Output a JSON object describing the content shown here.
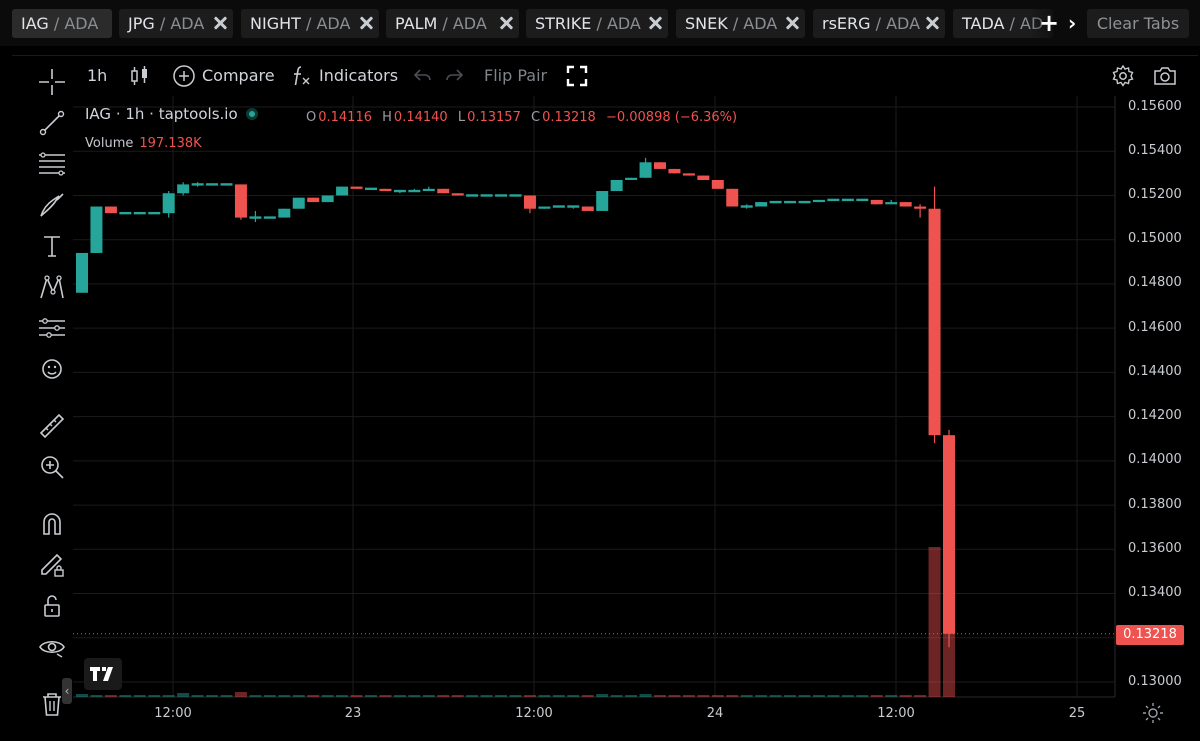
{
  "tabs": [
    {
      "symbol": "IAG",
      "quote": "ADA",
      "active": true
    },
    {
      "symbol": "JPG",
      "quote": "ADA"
    },
    {
      "symbol": "NIGHT",
      "quote": "ADA"
    },
    {
      "symbol": "PALM",
      "quote": "ADA"
    },
    {
      "symbol": "STRIKE",
      "quote": "ADA"
    },
    {
      "symbol": "SNEK",
      "quote": "ADA"
    },
    {
      "symbol": "rsERG",
      "quote": "ADA"
    },
    {
      "symbol": "TADA",
      "quote": "AD"
    }
  ],
  "tab_separator": " / ",
  "clear_tabs_label": "Clear Tabs",
  "toolbar": {
    "interval": "1h",
    "compare_label": "Compare",
    "indicators_label": "Indicators",
    "flip_pair_label": "Flip Pair"
  },
  "legend": {
    "title": "IAG · 1h · taptools.io",
    "open_key": "O",
    "open": "0.14116",
    "high_key": "H",
    "high": "0.14140",
    "low_key": "L",
    "low": "0.13157",
    "close_key": "C",
    "close": "0.13218",
    "change": "−0.00898 (−6.36%)",
    "volume_label": "Volume",
    "volume": "197.138K"
  },
  "price_axis": {
    "ticks": [
      "0.15600",
      "0.15400",
      "0.15200",
      "0.15000",
      "0.14800",
      "0.14600",
      "0.14400",
      "0.14200",
      "0.14000",
      "0.13800",
      "0.13600",
      "0.13400",
      "0.13200",
      "0.13000"
    ],
    "last_price": "0.13218"
  },
  "time_axis": {
    "ticks": [
      "12:00",
      "23",
      "12:00",
      "24",
      "12:00",
      "25"
    ]
  },
  "colors": {
    "up": "#26a69a",
    "down": "#ef5350",
    "background": "#000000",
    "grid": "#1b1b1b"
  },
  "icons": {
    "left_toolbar": [
      "crosshair-icon",
      "trend-line-icon",
      "fib-icon",
      "brush-icon",
      "text-icon",
      "pattern-icon",
      "prediction-icon",
      "emoji-icon",
      "ruler-icon",
      "zoom-in-icon",
      "magnet-icon",
      "lock-drawing-icon",
      "unlock-icon",
      "eye-icon",
      "trash-icon"
    ],
    "top_toolbar": [
      "candle-type-icon",
      "add-circle-icon",
      "fx-icon",
      "undo-icon",
      "redo-icon",
      "fullscreen-icon",
      "settings-icon",
      "camera-icon"
    ]
  },
  "chart_data": {
    "type": "candlestick",
    "interval": "1h",
    "ylim": [
      0.1295,
      0.1565
    ],
    "x_ticks": [
      "12:00",
      "23",
      "12:00",
      "24",
      "12:00",
      "25"
    ],
    "candles": [
      [
        0.1476,
        0.1494,
        0.1476,
        0.1494
      ],
      [
        0.1494,
        0.1515,
        0.1494,
        0.1515
      ],
      [
        0.1515,
        0.1515,
        0.1512,
        0.1512
      ],
      [
        0.1512,
        0.1512,
        0.1512,
        0.1512
      ],
      [
        0.1512,
        0.1512,
        0.1512,
        0.1512
      ],
      [
        0.1512,
        0.1512,
        0.1512,
        0.1512
      ],
      [
        0.1512,
        0.1522,
        0.151,
        0.1521
      ],
      [
        0.1521,
        0.1526,
        0.152,
        0.1525
      ],
      [
        0.1525,
        0.1526,
        0.1524,
        0.1525
      ],
      [
        0.1525,
        0.1525,
        0.1525,
        0.1525
      ],
      [
        0.1525,
        0.1525,
        0.1525,
        0.1525
      ],
      [
        0.1525,
        0.1525,
        0.1509,
        0.151
      ],
      [
        0.151,
        0.1513,
        0.1508,
        0.151
      ],
      [
        0.151,
        0.151,
        0.151,
        0.151
      ],
      [
        0.151,
        0.1514,
        0.151,
        0.1514
      ],
      [
        0.1514,
        0.1519,
        0.1514,
        0.1519
      ],
      [
        0.1519,
        0.1519,
        0.1517,
        0.1517
      ],
      [
        0.1517,
        0.152,
        0.1517,
        0.152
      ],
      [
        0.152,
        0.1524,
        0.152,
        0.1524
      ],
      [
        0.1524,
        0.1524,
        0.1523,
        0.1523
      ],
      [
        0.1523,
        0.1523,
        0.1523,
        0.1523
      ],
      [
        0.1523,
        0.1523,
        0.1522,
        0.1522
      ],
      [
        0.1522,
        0.1522,
        0.1521,
        0.1522
      ],
      [
        0.1522,
        0.1523,
        0.1522,
        0.1522
      ],
      [
        0.1522,
        0.1524,
        0.1522,
        0.1523
      ],
      [
        0.1523,
        0.1523,
        0.1521,
        0.1521
      ],
      [
        0.1521,
        0.1521,
        0.152,
        0.152
      ],
      [
        0.152,
        0.152,
        0.152,
        0.152
      ],
      [
        0.152,
        0.152,
        0.152,
        0.152
      ],
      [
        0.152,
        0.152,
        0.152,
        0.152
      ],
      [
        0.152,
        0.152,
        0.152,
        0.152
      ],
      [
        0.152,
        0.152,
        0.1512,
        0.1514
      ],
      [
        0.1514,
        0.1515,
        0.1514,
        0.1515
      ],
      [
        0.1515,
        0.1515,
        0.1515,
        0.1515
      ],
      [
        0.1515,
        0.1515,
        0.1514,
        0.1515
      ],
      [
        0.1515,
        0.1515,
        0.1513,
        0.1513
      ],
      [
        0.1513,
        0.1522,
        0.1513,
        0.1522
      ],
      [
        0.1522,
        0.1527,
        0.1522,
        0.1527
      ],
      [
        0.1527,
        0.1528,
        0.1527,
        0.1528
      ],
      [
        0.1528,
        0.1537,
        0.1528,
        0.1535
      ],
      [
        0.1535,
        0.1535,
        0.1532,
        0.1532
      ],
      [
        0.1532,
        0.1532,
        0.153,
        0.153
      ],
      [
        0.153,
        0.153,
        0.1529,
        0.1529
      ],
      [
        0.1529,
        0.1529,
        0.1527,
        0.1527
      ],
      [
        0.1527,
        0.1527,
        0.1523,
        0.1523
      ],
      [
        0.1523,
        0.1523,
        0.1515,
        0.1515
      ],
      [
        0.1515,
        0.1516,
        0.1514,
        0.1515
      ],
      [
        0.1515,
        0.1517,
        0.1515,
        0.1517
      ],
      [
        0.1517,
        0.1517,
        0.1517,
        0.1517
      ],
      [
        0.1517,
        0.1517,
        0.1517,
        0.1517
      ],
      [
        0.1517,
        0.1517,
        0.1517,
        0.1517
      ],
      [
        0.1517,
        0.1518,
        0.1517,
        0.1518
      ],
      [
        0.1518,
        0.1518,
        0.1518,
        0.1518
      ],
      [
        0.1518,
        0.1518,
        0.1518,
        0.1518
      ],
      [
        0.1518,
        0.1518,
        0.1518,
        0.1518
      ],
      [
        0.1518,
        0.1518,
        0.1516,
        0.1516
      ],
      [
        0.1516,
        0.1518,
        0.1516,
        0.1517
      ],
      [
        0.1517,
        0.1517,
        0.1515,
        0.1515
      ],
      [
        0.1515,
        0.1516,
        0.151,
        0.1514
      ],
      [
        0.1514,
        0.1524,
        0.1408,
        0.14116
      ],
      [
        0.14116,
        0.1414,
        0.13157,
        0.13218
      ]
    ],
    "volumes": [
      3,
      2,
      1,
      1,
      1,
      1,
      1,
      4,
      2,
      1,
      1,
      5,
      2,
      1,
      1,
      2,
      1,
      1,
      2,
      1,
      1,
      1,
      1,
      1,
      1,
      1,
      1,
      1,
      1,
      1,
      1,
      1,
      1,
      1,
      1,
      1,
      3,
      2,
      1,
      3,
      2,
      1,
      1,
      1,
      1,
      2,
      1,
      1,
      1,
      1,
      1,
      1,
      1,
      1,
      1,
      1,
      1,
      1,
      1,
      150,
      100
    ]
  }
}
